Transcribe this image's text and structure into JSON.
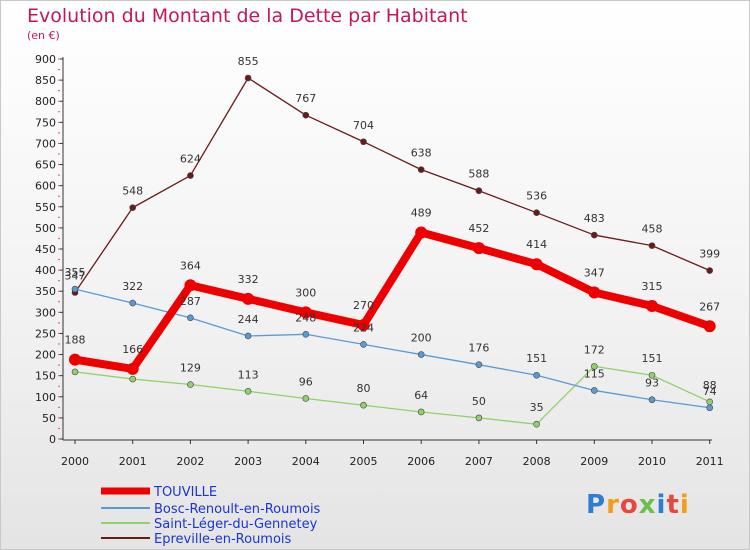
{
  "chart_data": {
    "type": "line",
    "title": "Evolution du Montant de la Dette par Habitant",
    "subtitle": "(en €)",
    "x": [
      "2000",
      "2001",
      "2002",
      "2003",
      "2004",
      "2005",
      "2006",
      "2007",
      "2008",
      "2009",
      "2010",
      "2011"
    ],
    "yticks": [
      0,
      50,
      100,
      150,
      200,
      250,
      300,
      350,
      400,
      450,
      500,
      550,
      600,
      650,
      700,
      750,
      800,
      850,
      900
    ],
    "ylim": [
      0,
      900
    ],
    "grid": false,
    "legend_position": "bottom-left",
    "series": [
      {
        "name": "Epreville-en-Roumois",
        "color": "#6b1a1a",
        "values": [
          347,
          548,
          624,
          855,
          767,
          704,
          638,
          588,
          536,
          483,
          458,
          399
        ]
      },
      {
        "name": "Saint-Léger-du-Gennetey",
        "color": "#8fd16a",
        "values": [
          159,
          142,
          129,
          113,
          96,
          80,
          64,
          50,
          35,
          172,
          151,
          88
        ]
      },
      {
        "name": "Bosc-Renoult-en-Roumois",
        "color": "#5b9bd5",
        "values": [
          355,
          322,
          287,
          244,
          248,
          224,
          200,
          176,
          151,
          115,
          93,
          74
        ]
      },
      {
        "name": "TOUVILLE",
        "color": "#ee0000",
        "values": [
          188,
          166,
          364,
          332,
          300,
          270,
          489,
          452,
          414,
          347,
          315,
          267
        ]
      }
    ],
    "point_labels": {
      "Epreville-en-Roumois": [
        "347",
        "548",
        "624",
        "855",
        "767",
        "704",
        "638",
        "588",
        "536",
        "483",
        "458",
        "399"
      ],
      "Saint-Léger-du-Gennetey": [
        "",
        "",
        "129",
        "113",
        "96",
        "80",
        "64",
        "50",
        "35",
        "172",
        "151",
        "88"
      ],
      "Bosc-Renoult-en-Roumois": [
        "355",
        "322",
        "287",
        "244",
        "248",
        "224",
        "200",
        "176",
        "151",
        "115",
        "93",
        "74"
      ],
      "TOUVILLE": [
        "188",
        "166",
        "364",
        "332",
        "300",
        "270",
        "489",
        "452",
        "414",
        "347",
        "315",
        "267"
      ]
    },
    "legend_order": [
      "TOUVILLE",
      "Bosc-Renoult-en-Roumois",
      "Saint-Léger-du-Gennetey",
      "Epreville-en-Roumois"
    ],
    "legend_text_colors": {
      "TOUVILLE": "#1b34d6",
      "Bosc-Renoult-en-Roumois": "#1b34d6",
      "Saint-Léger-du-Gennetey": "#1b34d6",
      "Epreville-en-Roumois": "#1b34d6"
    }
  },
  "logo": {
    "text": "Proxiti"
  }
}
